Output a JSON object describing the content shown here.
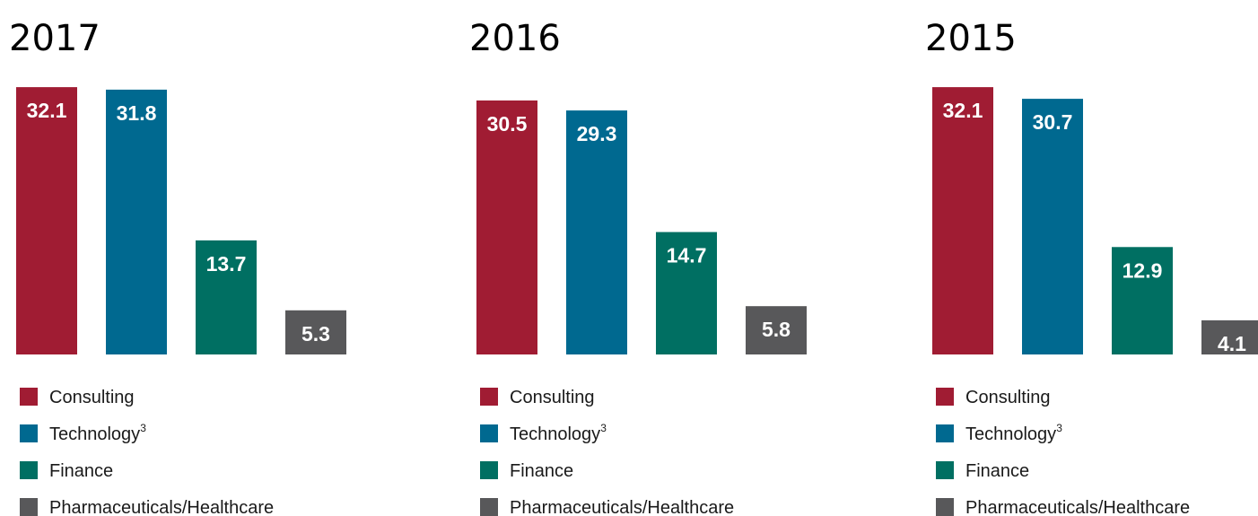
{
  "colors": {
    "Consulting": "#a01c33",
    "Technology": "#006990",
    "Finance": "#006f62",
    "Pharmaceuticals/Healthcare": "#58585a"
  },
  "chart_data": [
    {
      "type": "bar",
      "title": "2017",
      "categories": [
        "Consulting",
        "Technology",
        "Finance",
        "Pharmaceuticals/Healthcare"
      ],
      "values": [
        32.1,
        31.8,
        13.7,
        5.3
      ],
      "legend": [
        {
          "label": "Consulting",
          "sup": ""
        },
        {
          "label": "Technology",
          "sup": "3"
        },
        {
          "label": "Finance",
          "sup": ""
        },
        {
          "label": "Pharmaceuticals/Healthcare",
          "sup": ""
        }
      ],
      "legend_position": "bottom"
    },
    {
      "type": "bar",
      "title": "2016",
      "categories": [
        "Consulting",
        "Technology",
        "Finance",
        "Pharmaceuticals/Healthcare"
      ],
      "values": [
        30.5,
        29.3,
        14.7,
        5.8
      ],
      "legend": [
        {
          "label": "Consulting",
          "sup": ""
        },
        {
          "label": "Technology",
          "sup": "3"
        },
        {
          "label": "Finance",
          "sup": ""
        },
        {
          "label": "Pharmaceuticals/Healthcare",
          "sup": ""
        }
      ],
      "legend_position": "bottom"
    },
    {
      "type": "bar",
      "title": "2015",
      "categories": [
        "Consulting",
        "Technology",
        "Finance",
        "Pharmaceuticals/Healthcare"
      ],
      "values": [
        32.1,
        30.7,
        12.9,
        4.1
      ],
      "legend": [
        {
          "label": "Consulting",
          "sup": ""
        },
        {
          "label": "Technology",
          "sup": "3"
        },
        {
          "label": "Finance",
          "sup": ""
        },
        {
          "label": "Pharmaceuticals/Healthcare",
          "sup": ""
        }
      ],
      "legend_position": "bottom"
    }
  ]
}
